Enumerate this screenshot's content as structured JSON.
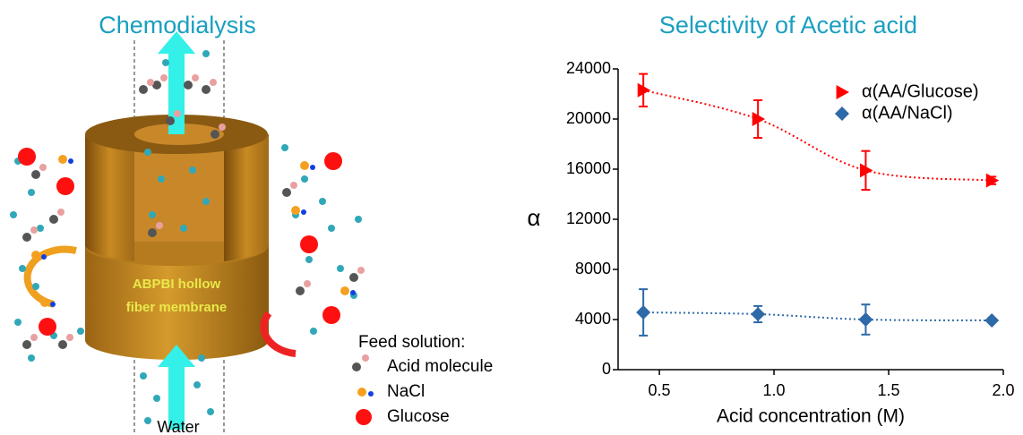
{
  "diagram": {
    "title": "Chemodialysis",
    "membrane_label": [
      "ABPBI hollow",
      "fiber membrane"
    ],
    "legend_title": "Feed solution:",
    "legend": [
      "Acid molecule",
      "NaCl",
      "Glucose"
    ],
    "water_label": "Water"
  },
  "chart_data": {
    "type": "scatter",
    "title": "Selectivity of Acetic acid",
    "x_label": "Acid concentration (M)",
    "y_label": "α",
    "x": [
      0.43,
      0.93,
      1.4,
      1.95
    ],
    "xlim": [
      0.32,
      2.0
    ],
    "ylim": [
      0,
      24000
    ],
    "xticks": [
      0.5,
      {
        "value": 1.0,
        "label": "1.0"
      },
      1.5,
      {
        "value": 2.0,
        "label": "2.0"
      }
    ],
    "yticks": [
      0,
      4000,
      8000,
      12000,
      16000,
      20000,
      24000
    ],
    "legend": "upper right",
    "series": [
      {
        "name": "α(AA/Glucose)",
        "color": "#ff0000",
        "marker": "triangle-right",
        "values": [
          22300,
          20000,
          15900,
          15100
        ],
        "errors": [
          1300,
          1500,
          1550,
          300
        ]
      },
      {
        "name": "α(AA/NaCl)",
        "color": "#2e6aa8",
        "marker": "diamond",
        "values": [
          4570,
          4430,
          4000,
          3930
        ],
        "errors": [
          1850,
          650,
          1200,
          150
        ]
      }
    ]
  }
}
